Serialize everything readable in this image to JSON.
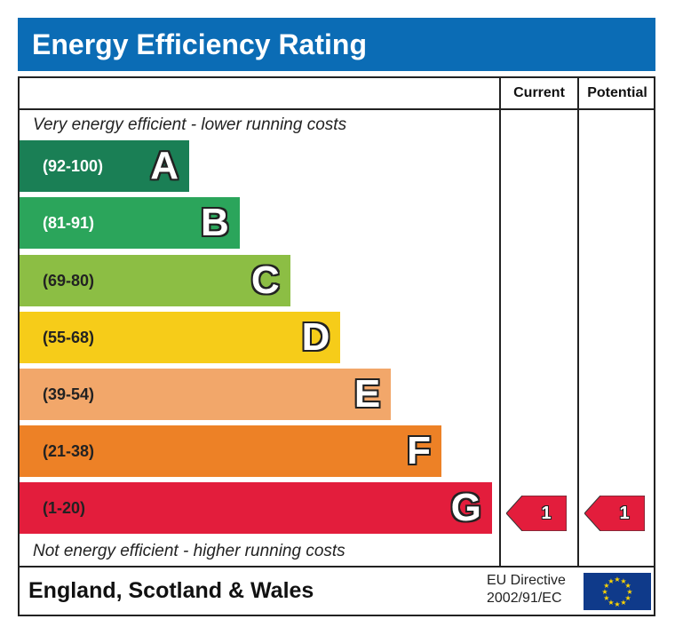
{
  "title": "Energy Efficiency Rating",
  "columns": {
    "current": "Current",
    "potential": "Potential"
  },
  "top_note": "Very energy efficient - lower running costs",
  "bottom_note": "Not energy efficient - higher running costs",
  "footer": {
    "region": "England, Scotland & Wales",
    "directive_line1": "EU Directive",
    "directive_line2": "2002/91/EC",
    "flag_icon": "eu-flag-icon"
  },
  "chart_data": {
    "type": "bar",
    "bands": [
      {
        "letter": "A",
        "range": "(92-100)",
        "color": "#1a7f55"
      },
      {
        "letter": "B",
        "range": "(81-91)",
        "color": "#2ba55b"
      },
      {
        "letter": "C",
        "range": "(69-80)",
        "color": "#8cbe44"
      },
      {
        "letter": "D",
        "range": "(55-68)",
        "color": "#f6cc19"
      },
      {
        "letter": "E",
        "range": "(39-54)",
        "color": "#f2a76a"
      },
      {
        "letter": "F",
        "range": "(21-38)",
        "color": "#ed8126"
      },
      {
        "letter": "G",
        "range": "(1-20)",
        "color": "#e31d3c"
      }
    ],
    "current": {
      "value": "1",
      "band": "G"
    },
    "potential": {
      "value": "1",
      "band": "G"
    },
    "arrow_color": "#e31d3c"
  }
}
